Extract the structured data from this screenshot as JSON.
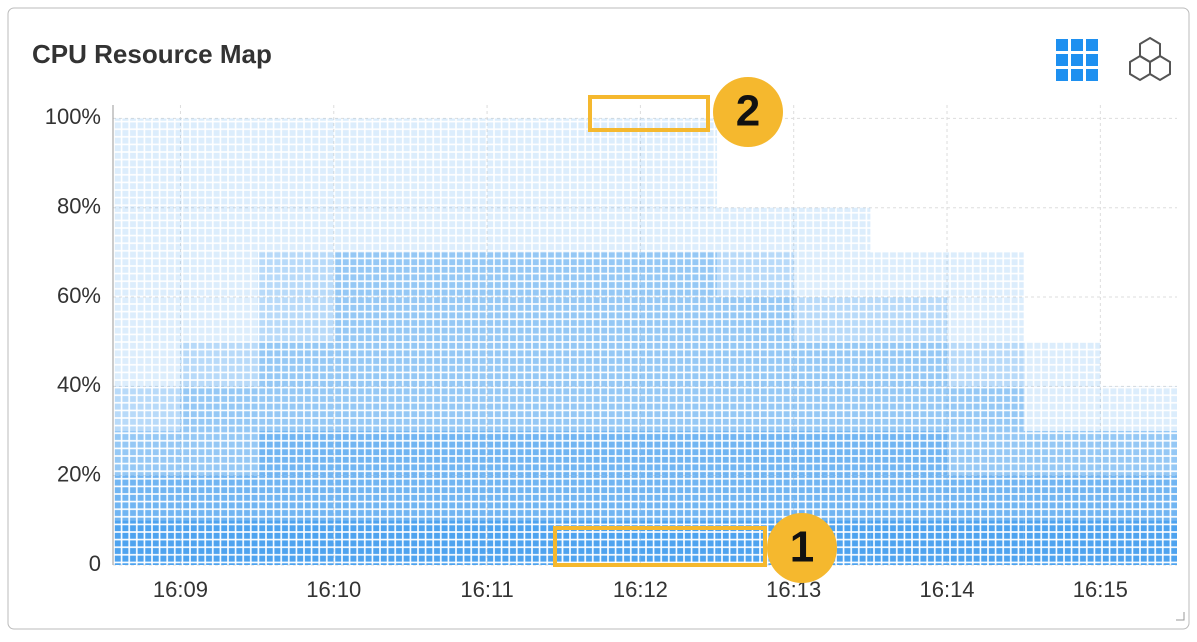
{
  "chart_data": {
    "type": "heatmap",
    "title": "CPU Resource Map",
    "xlim": [
      968.56,
      975.5
    ],
    "xticks": [
      {
        "value": 969,
        "label": "16:09"
      },
      {
        "value": 970,
        "label": "16:10"
      },
      {
        "value": 971,
        "label": "16:11"
      },
      {
        "value": 972,
        "label": "16:12"
      },
      {
        "value": 973,
        "label": "16:13"
      },
      {
        "value": 974,
        "label": "16:14"
      },
      {
        "value": 975,
        "label": "16:15"
      }
    ],
    "ylim": [
      0,
      103
    ],
    "yticks": [
      0,
      {
        "value": 20,
        "label": "20%"
      },
      {
        "value": 40,
        "label": "40%"
      },
      {
        "value": 60,
        "label": "60%"
      },
      {
        "value": 80,
        "label": "80%"
      },
      {
        "value": 100,
        "label": "100%"
      }
    ],
    "grid": true,
    "color": "#4ea3ef",
    "xbins": [
      968.56,
      969,
      969.5,
      970,
      970.5,
      971,
      971.5,
      972,
      972.5,
      973,
      973.5,
      974,
      974.5,
      975,
      975.5
    ],
    "ybins": [
      0,
      10,
      20,
      30,
      40,
      50,
      60,
      70,
      80,
      90,
      100
    ],
    "values": [
      [
        5,
        4,
        3,
        2,
        1,
        1,
        1,
        1,
        1,
        1
      ],
      [
        5,
        4,
        3,
        3,
        2,
        1,
        1,
        1,
        1,
        1
      ],
      [
        5,
        4,
        4,
        3,
        3,
        2,
        2,
        1,
        1,
        1
      ],
      [
        5,
        4,
        4,
        3,
        3,
        3,
        3,
        1,
        1,
        1
      ],
      [
        5,
        4,
        4,
        3,
        3,
        3,
        3,
        1,
        1,
        1
      ],
      [
        5,
        4,
        4,
        3,
        3,
        3,
        3,
        1,
        1,
        1
      ],
      [
        5,
        4,
        4,
        3,
        3,
        3,
        3,
        1,
        1,
        1
      ],
      [
        5,
        4,
        4,
        3,
        3,
        3,
        3,
        1,
        1,
        1
      ],
      [
        5,
        4,
        4,
        3,
        3,
        3,
        2,
        1,
        0,
        0
      ],
      [
        5,
        4,
        4,
        3,
        3,
        2,
        1,
        1,
        0,
        0
      ],
      [
        5,
        4,
        4,
        3,
        3,
        2,
        1,
        0,
        0,
        0
      ],
      [
        5,
        4,
        3,
        3,
        2,
        1,
        1,
        0,
        0,
        0
      ],
      [
        5,
        4,
        3,
        1,
        1,
        0,
        0,
        0,
        0,
        0
      ],
      [
        5,
        4,
        3,
        1,
        0,
        0,
        0,
        0,
        0,
        0
      ]
    ],
    "annotations": [
      {
        "label": "1"
      },
      {
        "label": "2"
      }
    ]
  }
}
